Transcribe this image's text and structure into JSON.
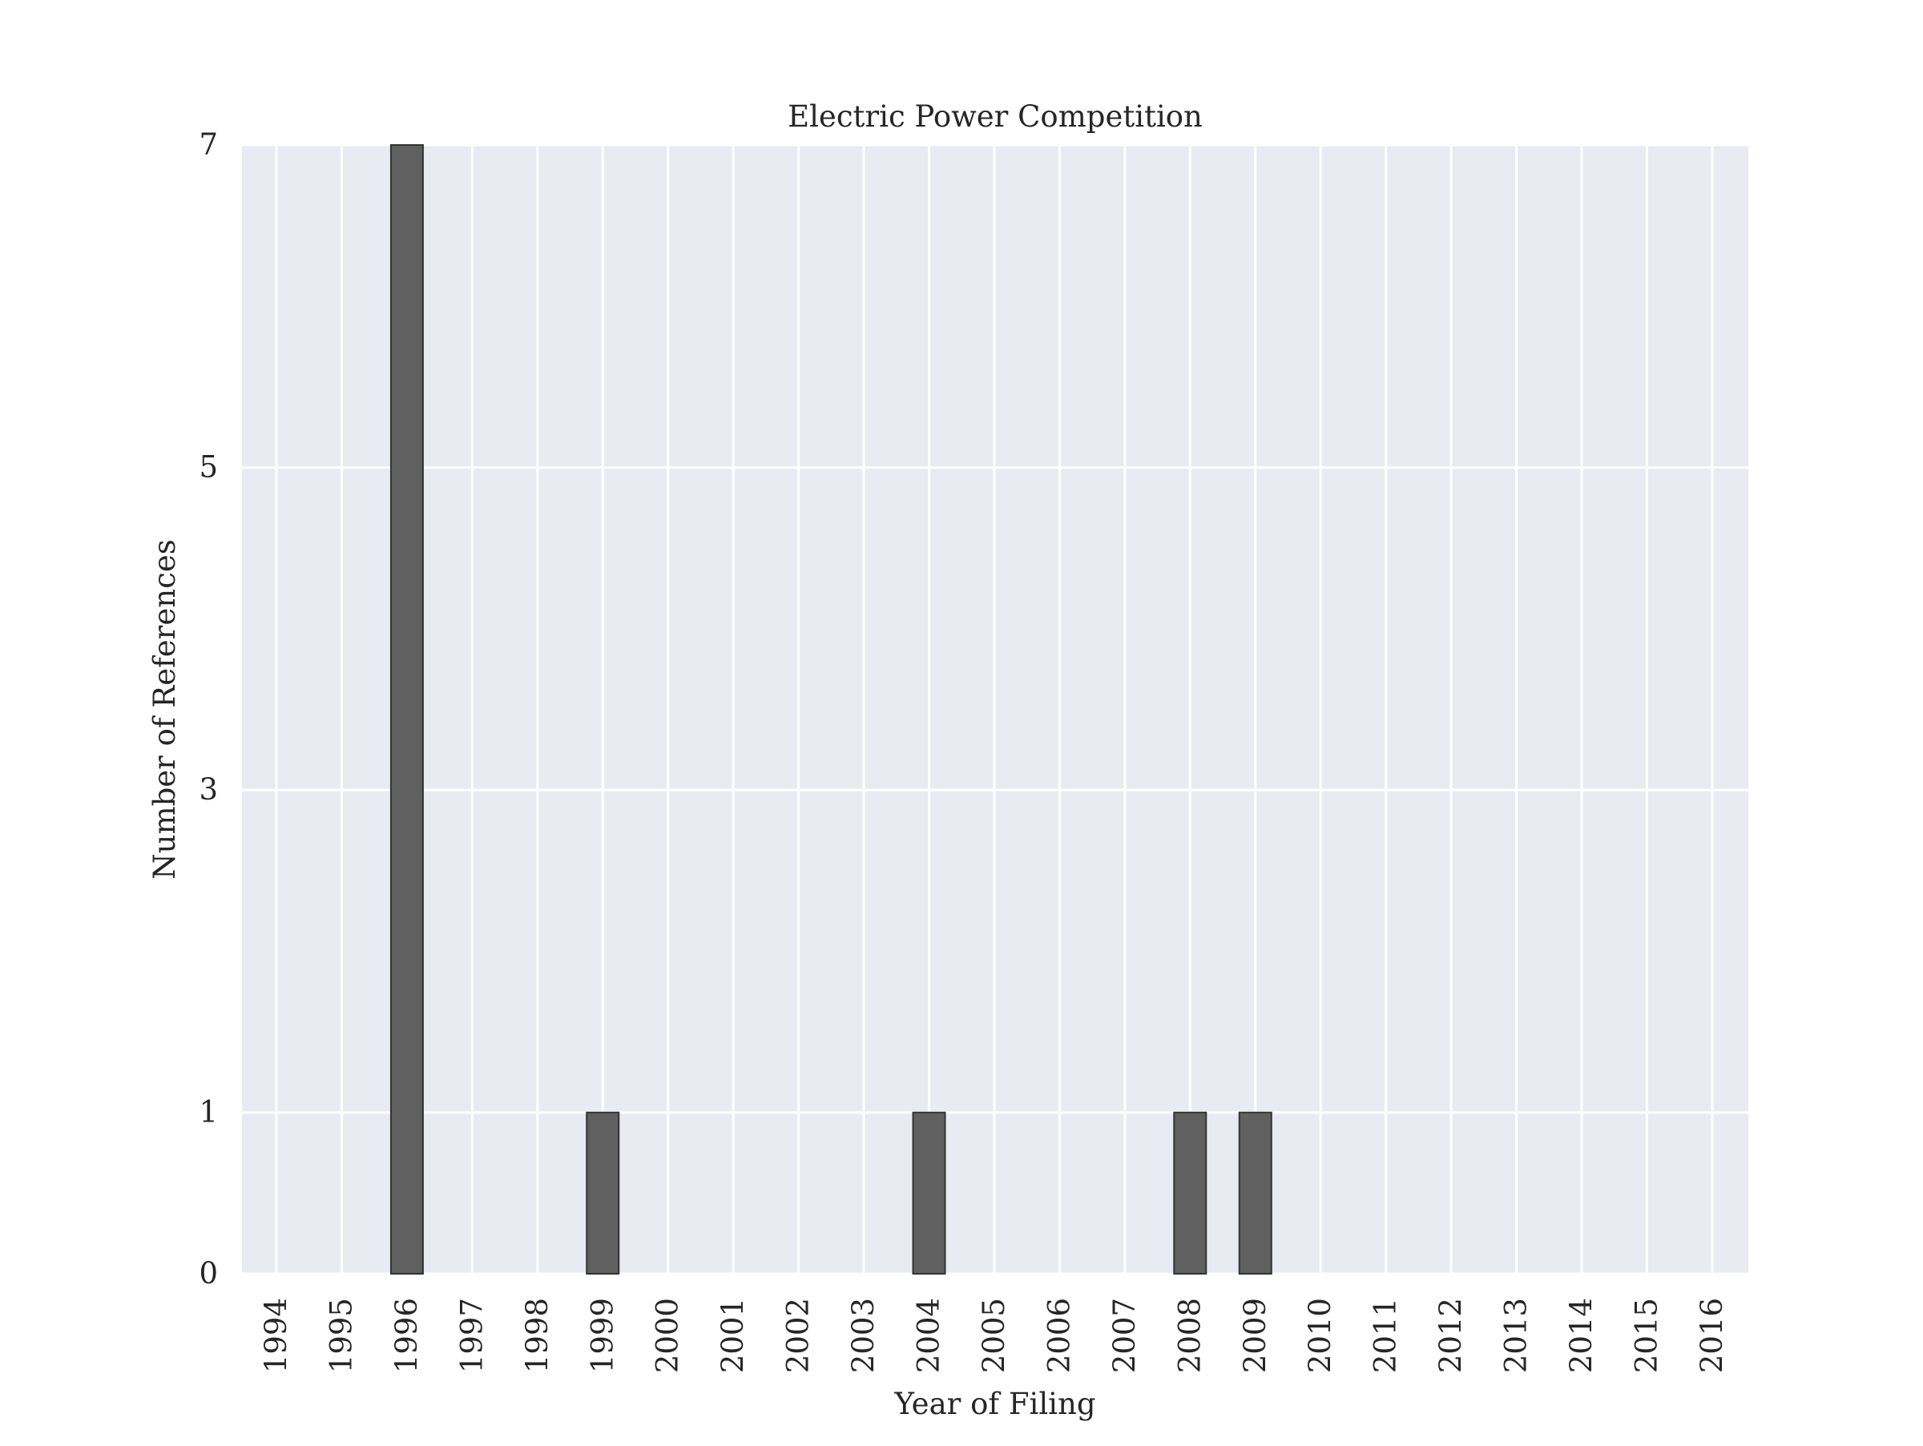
{
  "chart_data": {
    "type": "bar",
    "title": "Electric Power Competition",
    "xlabel": "Year of Filing",
    "ylabel": "Number of References",
    "categories": [
      "1994",
      "1995",
      "1996",
      "1997",
      "1998",
      "1999",
      "2000",
      "2001",
      "2002",
      "2003",
      "2004",
      "2005",
      "2006",
      "2007",
      "2008",
      "2009",
      "2010",
      "2011",
      "2012",
      "2013",
      "2014",
      "2015",
      "2016"
    ],
    "values": [
      0,
      0,
      7,
      0,
      0,
      1,
      0,
      0,
      0,
      0,
      1,
      0,
      0,
      0,
      1,
      1,
      0,
      0,
      0,
      0,
      0,
      0,
      0
    ],
    "yticks": [
      0,
      1,
      3,
      5,
      7
    ],
    "ylim": [
      0,
      7
    ],
    "grid": true,
    "colors": {
      "background": "#EAEAF2",
      "grid": "#FFFFFF",
      "bar": "#606060",
      "bar_edge": "#333333",
      "text": "#262626"
    }
  }
}
